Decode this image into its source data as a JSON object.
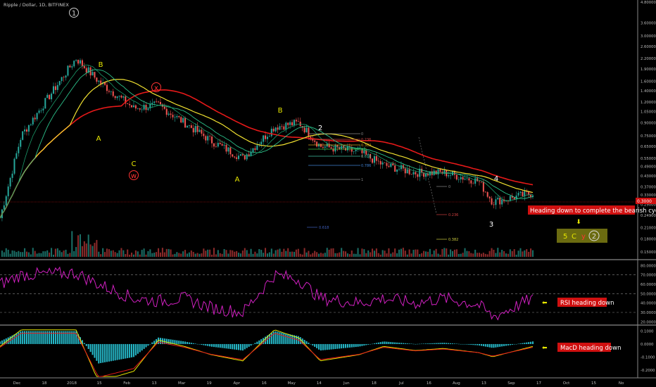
{
  "header": {
    "symbol_label": "Ripple / Dollar, 1D, BITFINEX"
  },
  "price_axis": {
    "ticks": [
      "4.80000",
      "3.60000",
      "3.00000",
      "2.60000",
      "2.20000",
      "1.90000",
      "1.60000",
      "1.40000",
      "1.20000",
      "1.05000",
      "0.90000",
      "0.75000",
      "0.65000",
      "0.55000",
      "0.49000",
      "0.43000",
      "0.37000",
      "0.33000",
      "0.29000",
      "0.24900",
      "0.21000",
      "0.18000",
      "0.15000"
    ]
  },
  "last_price_label": "0.3000",
  "rsi_axis": {
    "ticks": [
      "80.0000",
      "70.0000",
      "60.0000",
      "50.0000",
      "40.0000",
      "30.0000",
      "20.0000"
    ]
  },
  "macd_axis": {
    "ticks": [
      "0.1000",
      "0.0000",
      "-0.1000",
      "-0.2000"
    ]
  },
  "date_axis": {
    "labels": [
      "Dec",
      "18",
      "2018",
      "15",
      "Feb",
      "13",
      "Mar",
      "19",
      "Apr",
      "16",
      "May",
      "14",
      "Jun",
      "18",
      "Jul",
      "16",
      "Aug",
      "13",
      "Sep",
      "17",
      "Oct",
      "15",
      "No"
    ]
  },
  "wave_labels": [
    {
      "text": "1",
      "circled": true,
      "color": "#cccccc"
    },
    {
      "text": "B",
      "circled": false,
      "color": "#e6e600"
    },
    {
      "text": "A",
      "circled": false,
      "color": "#e6e600"
    },
    {
      "text": "x",
      "circled": true,
      "color": "#ff3333"
    },
    {
      "text": "C",
      "circled": false,
      "color": "#e6e600"
    },
    {
      "text": "w",
      "circled": true,
      "color": "#ff3333"
    },
    {
      "text": "A",
      "circled": false,
      "color": "#e6e600"
    },
    {
      "text": "B",
      "circled": false,
      "color": "#e6e600"
    },
    {
      "text": "2",
      "circled": false,
      "color": "#ffffff"
    },
    {
      "text": "3",
      "circled": false,
      "color": "#ffffff"
    },
    {
      "text": "4",
      "circled": false,
      "color": "#ffffff"
    }
  ],
  "fib_labels": [
    "0",
    "0.236",
    "0.382",
    "0.5",
    "0.618",
    "0.786",
    "1"
  ],
  "fib2_labels": [
    "0",
    "0.236",
    "0.382",
    "0.618"
  ],
  "annotations": {
    "bearish": "Heading down to complete the bearish cycle",
    "rsi": "RSI heading down",
    "macd": "MacD heading down",
    "cycle_5": "5",
    "cycle_c": "C",
    "cycle_y": "y",
    "cycle_2": "2"
  },
  "colors": {
    "up": "#26a69a",
    "down": "#ef5350",
    "ma_red": "#e61919",
    "ma_yellow": "#f0e030",
    "ma_green1": "#2cc08a",
    "ma_green2": "#1a9a6a",
    "rsi": "#d020c0",
    "macd_hist": "#26b8c8",
    "macd_line": "#e6e600",
    "signal_line": "#e61919",
    "annotation_bg": "#d01010",
    "cycle_box_bg": "#6b6b10"
  },
  "chart_data": {
    "type": "line",
    "title": "Ripple / Dollar, 1D, BITFINEX",
    "x_range": [
      "Dec 2017",
      "Nov 2018"
    ],
    "log_scale": true,
    "grid": false,
    "series": [
      {
        "name": "Ripple / Dollar",
        "x": [
          "Dec",
          "18",
          "2018",
          "15",
          "Feb",
          "13",
          "Mar",
          "19",
          "Apr",
          "16",
          "May",
          "14",
          "Jun",
          "18",
          "Jul",
          "16",
          "Aug",
          "13",
          "Sep"
        ],
        "values": [
          0.24,
          0.75,
          2.2,
          1.6,
          1.1,
          1.15,
          0.9,
          0.7,
          0.55,
          0.85,
          0.9,
          0.65,
          0.6,
          0.5,
          0.45,
          0.45,
          0.4,
          0.3,
          0.34
        ]
      }
    ],
    "rsi_values": [
      60,
      70,
      72,
      60,
      45,
      42,
      45,
      35,
      30,
      70,
      65,
      45,
      40,
      45,
      40,
      45,
      38,
      25,
      45
    ],
    "macd_hist_values": [
      0.02,
      0.1,
      0.1,
      -0.15,
      -0.1,
      0.05,
      0.02,
      -0.02,
      -0.05,
      0.1,
      0.06,
      -0.05,
      -0.02,
      0.02,
      0,
      0.01,
      -0.01,
      -0.03,
      0.02
    ],
    "ylim": [
      0.15,
      4.8
    ]
  }
}
